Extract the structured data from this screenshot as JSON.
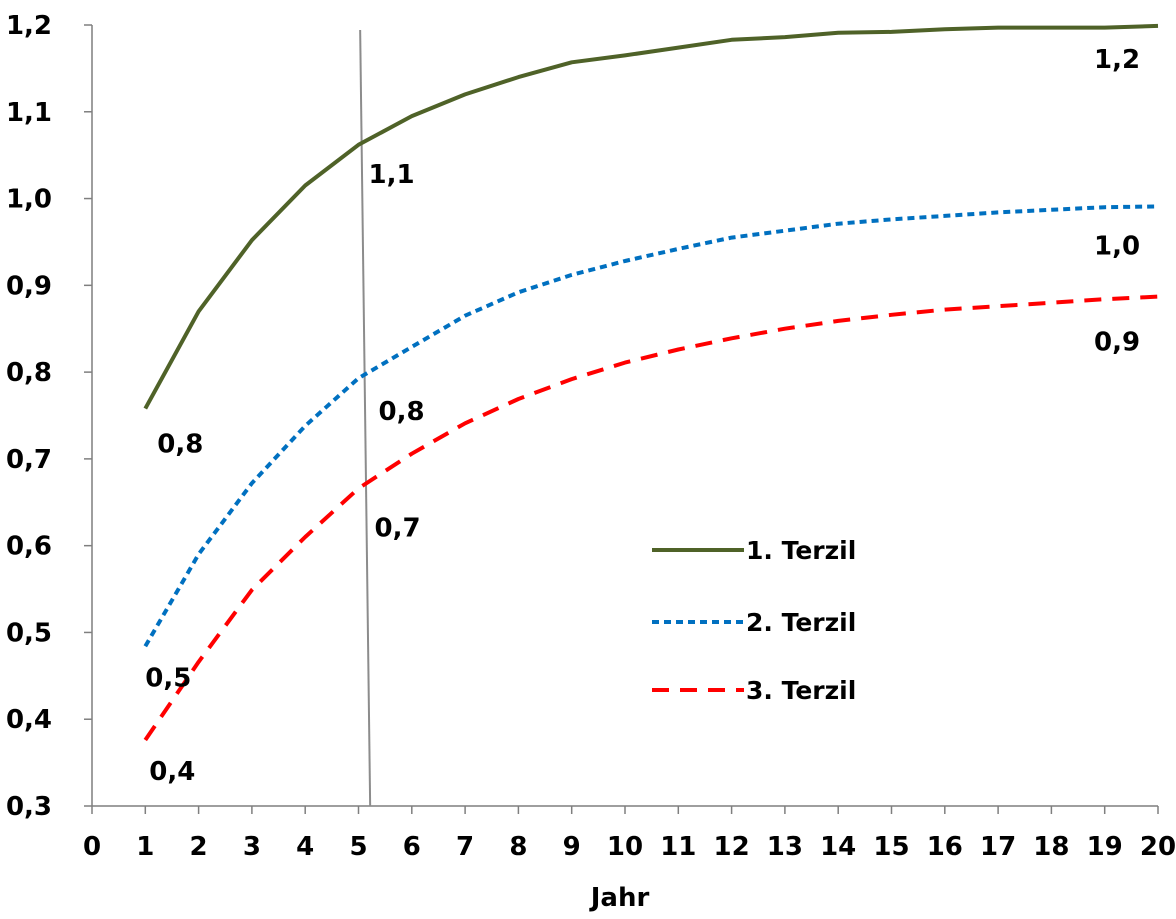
{
  "chart_data": {
    "type": "line",
    "title": "",
    "xlabel": "Jahr",
    "ylabel": "",
    "xlim": [
      0,
      20
    ],
    "ylim": [
      0.3,
      1.2
    ],
    "x_ticks": [
      0,
      1,
      2,
      3,
      4,
      5,
      6,
      7,
      8,
      9,
      10,
      11,
      12,
      13,
      14,
      15,
      16,
      17,
      18,
      19,
      20
    ],
    "y_ticks": [
      0.3,
      0.4,
      0.5,
      0.6,
      0.7,
      0.8,
      0.9,
      1.0,
      1.1,
      1.2
    ],
    "y_tick_labels": [
      "0,3",
      "0,4",
      "0,5",
      "0,6",
      "0,7",
      "0,8",
      "0,9",
      "1,0",
      "1,1",
      "1,2"
    ],
    "grid": false,
    "legend_position": "right-center",
    "reference_line": {
      "x": 5.2
    },
    "series": [
      {
        "name": "1. Terzil",
        "color": "#4f6228",
        "dash": "solid",
        "x": [
          1,
          2,
          3,
          4,
          5,
          6,
          7,
          8,
          9,
          10,
          11,
          12,
          13,
          14,
          15,
          16,
          17,
          18,
          19,
          20
        ],
        "values": [
          0.758,
          0.87,
          0.952,
          1.015,
          1.062,
          1.095,
          1.12,
          1.14,
          1.157,
          1.165,
          1.174,
          1.183,
          1.186,
          1.191,
          1.192,
          1.195,
          1.197,
          1.197,
          1.197,
          1.199
        ],
        "data_labels": [
          {
            "x": 1,
            "text": "0,8"
          },
          {
            "x": 5,
            "text": "1,1"
          },
          {
            "x": 20,
            "text": "1,2"
          }
        ]
      },
      {
        "name": "2. Terzil",
        "color": "#0070c0",
        "dash": "dotted",
        "x": [
          1,
          2,
          3,
          4,
          5,
          6,
          7,
          8,
          9,
          10,
          11,
          12,
          13,
          14,
          15,
          16,
          17,
          18,
          19,
          20
        ],
        "values": [
          0.484,
          0.59,
          0.672,
          0.738,
          0.793,
          0.829,
          0.865,
          0.892,
          0.912,
          0.928,
          0.942,
          0.955,
          0.963,
          0.971,
          0.976,
          0.98,
          0.984,
          0.987,
          0.99,
          0.991
        ],
        "data_labels": [
          {
            "x": 1,
            "text": "0,5"
          },
          {
            "x": 5,
            "text": "0,8"
          },
          {
            "x": 20,
            "text": "1,0"
          }
        ]
      },
      {
        "name": "3. Terzil",
        "color": "#ff0000",
        "dash": "dashed",
        "x": [
          1,
          2,
          3,
          4,
          5,
          6,
          7,
          8,
          9,
          10,
          11,
          12,
          13,
          14,
          15,
          16,
          17,
          18,
          19,
          20
        ],
        "values": [
          0.376,
          0.466,
          0.549,
          0.61,
          0.666,
          0.706,
          0.741,
          0.769,
          0.792,
          0.811,
          0.826,
          0.839,
          0.85,
          0.859,
          0.866,
          0.872,
          0.876,
          0.88,
          0.884,
          0.887
        ],
        "data_labels": [
          {
            "x": 1,
            "text": "0,4"
          },
          {
            "x": 5,
            "text": "0,7"
          },
          {
            "x": 20,
            "text": "0,9"
          }
        ]
      }
    ]
  }
}
